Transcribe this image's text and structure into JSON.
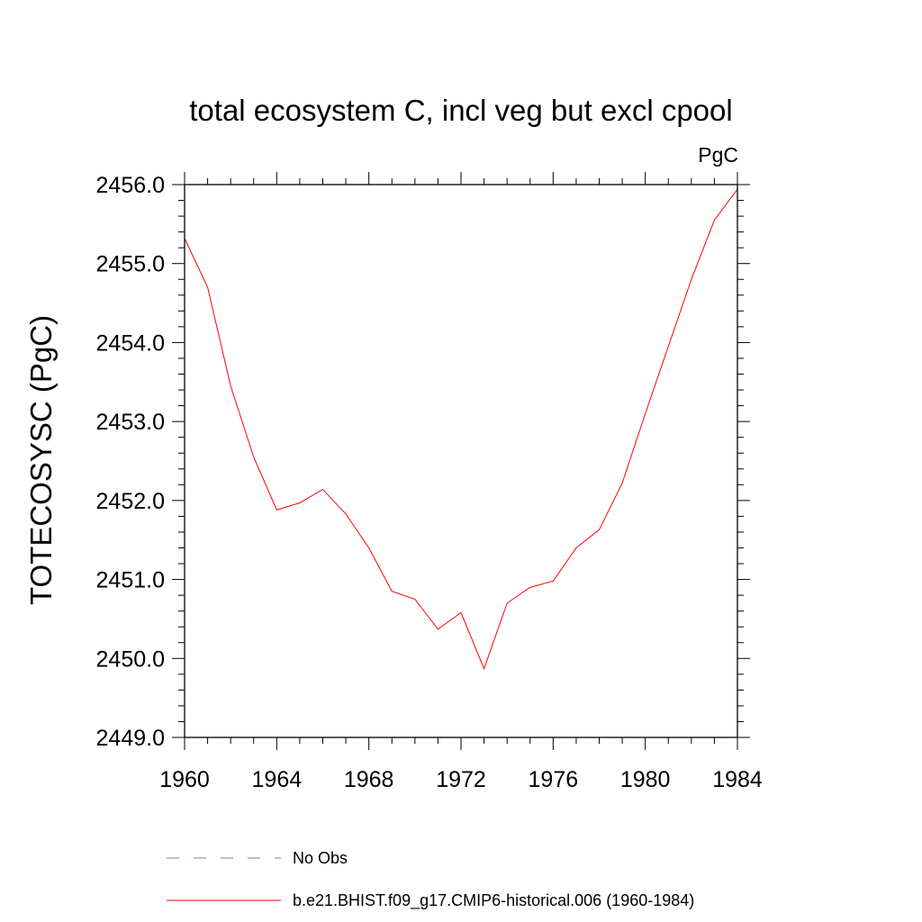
{
  "chart_data": {
    "type": "line",
    "title": "total ecosystem C, incl veg but excl cpool",
    "units_label": "PgC",
    "ylabel": "TOTECOSYSC  (PgC)",
    "xlabel": "",
    "xlim": [
      1960,
      1984
    ],
    "ylim": [
      2449.0,
      2456.0
    ],
    "xticks": [
      "1960",
      "1964",
      "1968",
      "1972",
      "1976",
      "1980",
      "1984"
    ],
    "yticks": [
      "2449.0",
      "2450.0",
      "2451.0",
      "2452.0",
      "2453.0",
      "2454.0",
      "2455.0",
      "2456.0"
    ],
    "grid": false,
    "legend_position": "bottom",
    "series": [
      {
        "name": "b.e21.BHIST.f09_g17.CMIP6-historical.006 (1960-1984)",
        "color": "#ff0000",
        "style": "solid",
        "x": [
          1960,
          1961,
          1962,
          1963,
          1964,
          1965,
          1966,
          1967,
          1968,
          1969,
          1970,
          1971,
          1972,
          1973,
          1974,
          1975,
          1976,
          1977,
          1978,
          1979,
          1980,
          1981,
          1982,
          1983,
          1984
        ],
        "values": [
          2455.32,
          2454.7,
          2453.45,
          2452.55,
          2451.88,
          2451.97,
          2452.14,
          2451.83,
          2451.4,
          2450.85,
          2450.75,
          2450.37,
          2450.58,
          2449.87,
          2450.7,
          2450.9,
          2450.98,
          2451.4,
          2451.63,
          2452.22,
          2453.1,
          2453.95,
          2454.8,
          2455.55,
          2455.94
        ]
      }
    ],
    "legend": [
      {
        "label": "No Obs",
        "color": "#7777cc",
        "style": "dashed"
      },
      {
        "label": "b.e21.BHIST.f09_g17.CMIP6-historical.006 (1960-1984)",
        "color": "#ff0000",
        "style": "solid"
      }
    ]
  }
}
